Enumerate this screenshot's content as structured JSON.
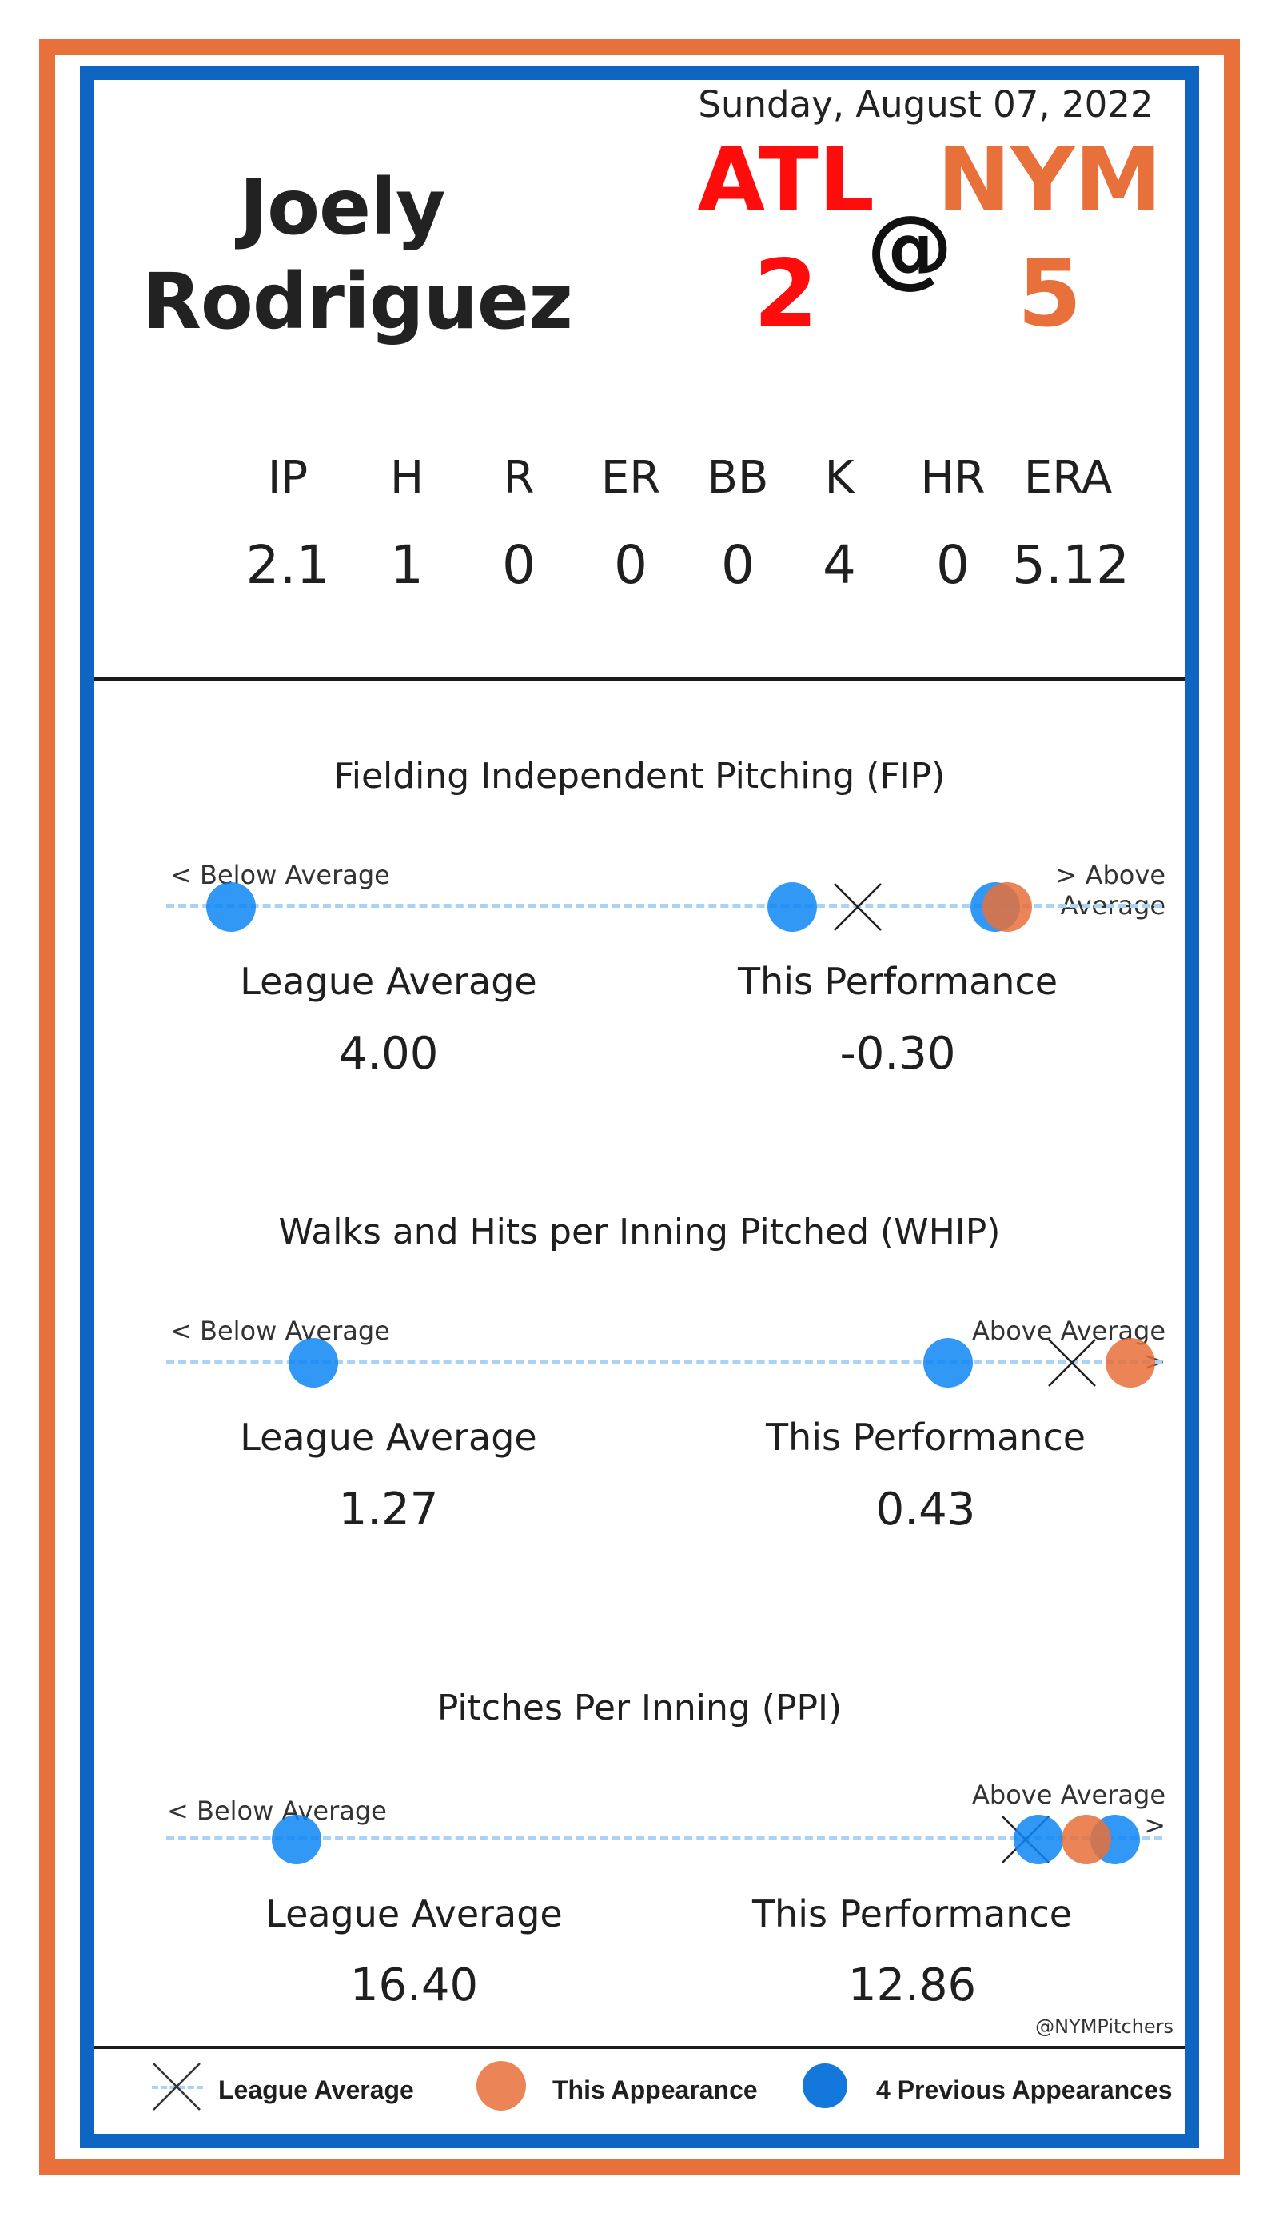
{
  "player": {
    "first_name": "Joely",
    "last_name": "Rodriguez"
  },
  "game": {
    "date": "Sunday, August 07, 2022",
    "away_team": "ATL",
    "home_team": "NYM",
    "away_score": "2",
    "home_score": "5",
    "separator": "@"
  },
  "colors": {
    "orange": "#e8703a",
    "blue": "#0e66c2",
    "away_red": "#ff0d0d",
    "previous_dot": "#0e86f3",
    "track": "#a9d2f5"
  },
  "stat_line": {
    "headers": [
      "IP",
      "H",
      "R",
      "ER",
      "BB",
      "K",
      "HR",
      "ERA"
    ],
    "values": [
      "2.1",
      "1",
      "0",
      "0",
      "0",
      "4",
      "0",
      "5.12"
    ]
  },
  "metrics": [
    {
      "title": "Fielding Independent Pitching (FIP)",
      "below_label": "< Below Average",
      "above_label": "> Above Average",
      "league_label": "League Average",
      "league_value": "4.00",
      "performance_label": "This Performance",
      "performance_value": "-0.30",
      "scale_positions": {
        "league_average": 0.68,
        "this_appearance": 0.85,
        "previous_appearances": [
          0.06,
          0.63,
          0.84
        ]
      }
    },
    {
      "title": "Walks and Hits per Inning Pitched (WHIP)",
      "below_label": "< Below Average",
      "above_label": "Above Average >",
      "league_label": "League Average",
      "league_value": "1.27",
      "performance_label": "This Performance",
      "performance_value": "0.43",
      "scale_positions": {
        "league_average": 0.91,
        "this_appearance": 0.97,
        "previous_appearances": [
          0.14,
          0.79
        ]
      }
    },
    {
      "title": "Pitches Per Inning (PPI)",
      "below_label": "< Below Average",
      "above_label": "Above Average >",
      "league_label": "League Average",
      "league_value": "16.40",
      "performance_label": "This Performance",
      "performance_value": "12.86",
      "scale_positions": {
        "league_average": 0.85,
        "this_appearance": 0.93,
        "previous_appearances": [
          0.12,
          0.88,
          0.95
        ]
      }
    }
  ],
  "footer": {
    "handle": "@NYMPitchers",
    "legend": {
      "league_average": "League Average",
      "this_appearance": "This Appearance",
      "previous_appearances": "4 Previous Appearances"
    }
  }
}
